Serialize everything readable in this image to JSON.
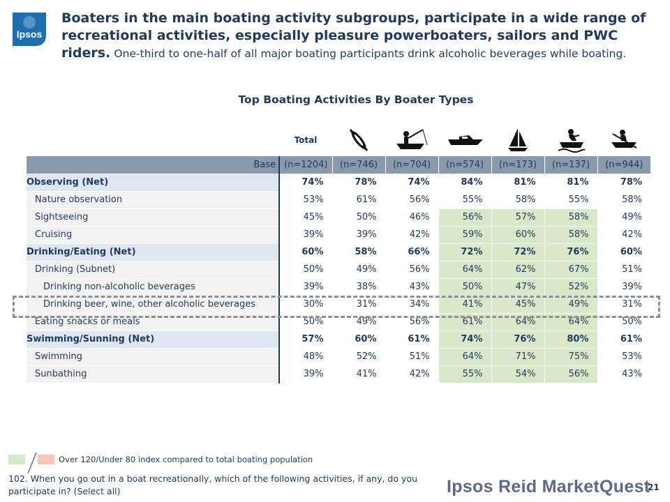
{
  "logo_text": "Ipsos",
  "headline_bold": "Boaters in the main boating activity subgroups, participate in a wide range of recreational activities, especially pleasure powerboaters, sailors and PWC riders.",
  "headline_regular": "One-third to one-half of all major boating participants drink alcoholic beverages while boating.",
  "chart_title": "Top Boating Activities By Boater Types",
  "columns": [
    {
      "label": "Total",
      "icon": "total-label"
    },
    {
      "label": "",
      "icon": "kayak-paddle-icon"
    },
    {
      "label": "",
      "icon": "fishing-boat-icon"
    },
    {
      "label": "",
      "icon": "powerboat-icon"
    },
    {
      "label": "",
      "icon": "sailboat-icon"
    },
    {
      "label": "",
      "icon": "pwc-rider-icon"
    },
    {
      "label": "",
      "icon": "rowboat-icon"
    }
  ],
  "base": {
    "label": "Base",
    "values": [
      "(n=1204)",
      "(n=746)",
      "(n=704)",
      "(n=574)",
      "(n=173)",
      "(n=137)",
      "(n=944)"
    ]
  },
  "rows": [
    {
      "label": "Observing (Net)",
      "type": "net",
      "values": [
        "74%",
        "78%",
        "74%",
        "84%",
        "81%",
        "81%",
        "78%"
      ],
      "highlight": [
        0,
        0,
        0,
        0,
        0,
        0,
        0
      ]
    },
    {
      "label": "Nature observation",
      "type": "sub1",
      "values": [
        "53%",
        "61%",
        "56%",
        "55%",
        "58%",
        "55%",
        "58%"
      ],
      "highlight": [
        0,
        0,
        0,
        0,
        0,
        0,
        0
      ]
    },
    {
      "label": "Sightseeing",
      "type": "sub1",
      "values": [
        "45%",
        "50%",
        "46%",
        "56%",
        "57%",
        "58%",
        "49%"
      ],
      "highlight": [
        0,
        0,
        0,
        1,
        1,
        1,
        0
      ]
    },
    {
      "label": "Cruising",
      "type": "sub1",
      "values": [
        "39%",
        "39%",
        "42%",
        "59%",
        "60%",
        "58%",
        "42%"
      ],
      "highlight": [
        0,
        0,
        0,
        1,
        1,
        1,
        0
      ]
    },
    {
      "label": "Drinking/Eating (Net)",
      "type": "net",
      "values": [
        "60%",
        "58%",
        "66%",
        "72%",
        "72%",
        "76%",
        "60%"
      ],
      "highlight": [
        0,
        0,
        0,
        1,
        1,
        1,
        0
      ]
    },
    {
      "label": "Drinking (Subnet)",
      "type": "sub1",
      "values": [
        "50%",
        "49%",
        "56%",
        "64%",
        "62%",
        "67%",
        "51%"
      ],
      "highlight": [
        0,
        0,
        0,
        1,
        1,
        1,
        0
      ]
    },
    {
      "label": "Drinking non-alcoholic beverages",
      "type": "sub2",
      "values": [
        "39%",
        "38%",
        "43%",
        "50%",
        "47%",
        "52%",
        "39%"
      ],
      "highlight": [
        0,
        0,
        0,
        1,
        1,
        1,
        0
      ]
    },
    {
      "label": "Drinking beer, wine, other alcoholic beverages",
      "type": "sub2",
      "values": [
        "30%",
        "31%",
        "34%",
        "41%",
        "45%",
        "49%",
        "31%"
      ],
      "highlight": [
        0,
        0,
        0,
        1,
        1,
        1,
        0
      ]
    },
    {
      "label": "Eating snacks or meals",
      "type": "sub1",
      "values": [
        "50%",
        "49%",
        "56%",
        "61%",
        "64%",
        "64%",
        "50%"
      ],
      "highlight": [
        0,
        0,
        0,
        1,
        1,
        1,
        0
      ]
    },
    {
      "label": "Swimming/Sunning (Net)",
      "type": "net",
      "values": [
        "57%",
        "60%",
        "61%",
        "74%",
        "76%",
        "80%",
        "61%"
      ],
      "highlight": [
        0,
        0,
        0,
        1,
        1,
        1,
        0
      ]
    },
    {
      "label": "Swimming",
      "type": "sub1",
      "values": [
        "48%",
        "52%",
        "51%",
        "64%",
        "71%",
        "75%",
        "53%"
      ],
      "highlight": [
        0,
        0,
        0,
        1,
        1,
        1,
        0
      ]
    },
    {
      "label": "Sunbathing",
      "type": "sub1",
      "values": [
        "39%",
        "41%",
        "42%",
        "55%",
        "54%",
        "56%",
        "43%"
      ],
      "highlight": [
        0,
        0,
        0,
        1,
        1,
        1,
        0
      ]
    }
  ],
  "legend_text": "Over 120/Under 80 index compared to total boating population",
  "footnote": "102. When you go out in a boat recreationally, which of the following activities, if any, do you participate in? (Select all)",
  "brand": "Ipsos Reid MarketQuest",
  "page_number": "21",
  "colors": {
    "highlight_green": "#d9e8c8",
    "highlight_pink": "#f5c6b4",
    "net_row": "#dfe8f2",
    "base_row": "#8a99ae",
    "text": "#1f3a5a"
  }
}
